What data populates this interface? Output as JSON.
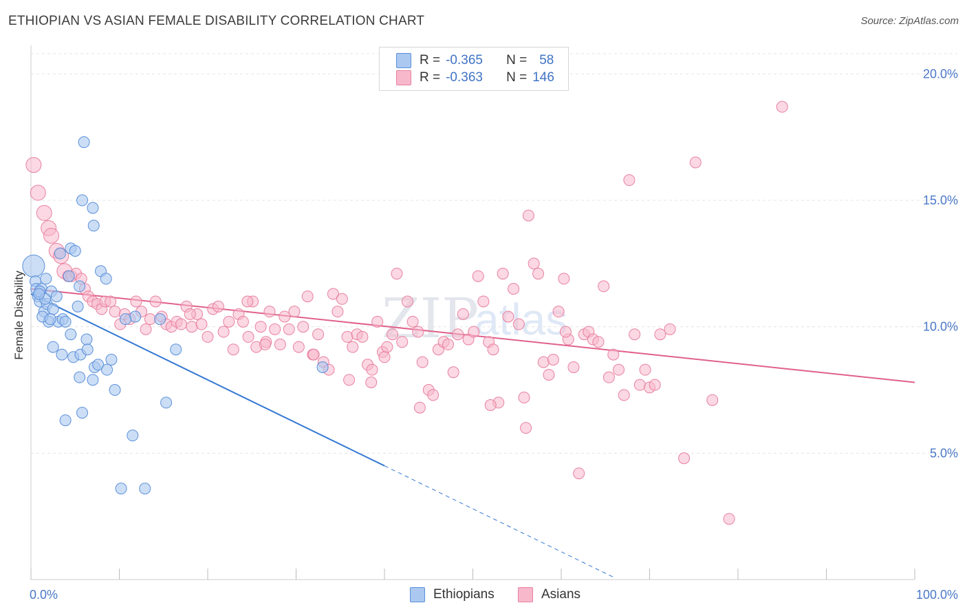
{
  "title": "ETHIOPIAN VS ASIAN FEMALE DISABILITY CORRELATION CHART",
  "source": "Source: ZipAtlas.com",
  "watermark": {
    "zip": "ZIP",
    "atlas": "atlas"
  },
  "legend": {
    "r_label": "R =",
    "n_label": "N =",
    "ethiopians": {
      "r": "-0.365",
      "n": "58"
    },
    "asians": {
      "r": "-0.363",
      "n": "146"
    }
  },
  "bottom_legend": {
    "ethiopians": "Ethiopians",
    "asians": "Asians"
  },
  "colors": {
    "ethiopians_fill": "#aac8f0",
    "ethiopians_stroke": "#5b8fd9",
    "ethiopians_line": "#3478d4",
    "asians_fill": "#f7b8cc",
    "asians_stroke": "#e8809f",
    "asians_line": "#e0608a",
    "tick_text": "#4a78c8",
    "grid": "#e4e4e4"
  },
  "chart_data": {
    "type": "scatter",
    "title": "ETHIOPIAN VS ASIAN FEMALE DISABILITY CORRELATION CHART",
    "xlabel": "",
    "ylabel": "Female Disability",
    "xlim": [
      0,
      100
    ],
    "ylim": [
      0,
      20.8
    ],
    "x_tick_labels": [
      "0.0%",
      "100.0%"
    ],
    "y_ticks": [
      5,
      10,
      15,
      20
    ],
    "y_tick_labels": [
      "5.0%",
      "10.0%",
      "15.0%",
      "20.0%"
    ],
    "grid": "horizontal dashed",
    "legend_position": "top-center",
    "series": [
      {
        "name": "Ethiopians",
        "r": -0.365,
        "n": 58,
        "trend": {
          "x0": 0,
          "y0": 11.3,
          "x1": 40,
          "y1": 4.5,
          "dashed_to_x": 66
        },
        "points": [
          [
            0.3,
            12.4
          ],
          [
            0.5,
            11.8
          ],
          [
            0.6,
            11.5
          ],
          [
            0.8,
            11.2
          ],
          [
            1.0,
            11.0
          ],
          [
            1.2,
            11.5
          ],
          [
            1.5,
            10.6
          ],
          [
            1.7,
            11.9
          ],
          [
            1.8,
            10.9
          ],
          [
            2.0,
            10.2
          ],
          [
            1.3,
            10.4
          ],
          [
            2.3,
            11.4
          ],
          [
            2.5,
            10.7
          ],
          [
            2.9,
            11.2
          ],
          [
            3.1,
            10.2
          ],
          [
            3.6,
            10.3
          ],
          [
            3.9,
            10.2
          ],
          [
            3.3,
            12.9
          ],
          [
            4.3,
            12.0
          ],
          [
            4.5,
            13.1
          ],
          [
            5.0,
            13.0
          ],
          [
            5.3,
            10.8
          ],
          [
            5.5,
            11.6
          ],
          [
            6.0,
            17.3
          ],
          [
            5.8,
            15.0
          ],
          [
            7.0,
            14.7
          ],
          [
            7.1,
            14.0
          ],
          [
            7.9,
            12.2
          ],
          [
            8.5,
            11.9
          ],
          [
            2.5,
            9.2
          ],
          [
            3.5,
            8.9
          ],
          [
            4.5,
            9.7
          ],
          [
            4.8,
            8.8
          ],
          [
            5.6,
            8.9
          ],
          [
            6.3,
            9.5
          ],
          [
            6.4,
            9.1
          ],
          [
            7.2,
            8.4
          ],
          [
            7.6,
            8.5
          ],
          [
            8.6,
            8.3
          ],
          [
            9.1,
            8.7
          ],
          [
            5.5,
            8.0
          ],
          [
            7.0,
            7.9
          ],
          [
            9.5,
            7.5
          ],
          [
            11.8,
            10.4
          ],
          [
            10.7,
            10.3
          ],
          [
            14.6,
            10.3
          ],
          [
            16.4,
            9.1
          ],
          [
            15.3,
            7.0
          ],
          [
            5.8,
            6.6
          ],
          [
            3.9,
            6.3
          ],
          [
            11.5,
            5.7
          ],
          [
            10.2,
            3.6
          ],
          [
            12.9,
            3.6
          ],
          [
            33.0,
            8.4
          ],
          [
            1.0,
            11.4
          ],
          [
            2.2,
            10.3
          ],
          [
            1.6,
            11.1
          ],
          [
            0.9,
            11.3
          ]
        ]
      },
      {
        "name": "Asians",
        "r": -0.363,
        "n": 146,
        "trend": {
          "x0": 0,
          "y0": 11.5,
          "x1": 100,
          "y1": 7.8
        },
        "points": [
          [
            0.3,
            16.4
          ],
          [
            0.8,
            15.3
          ],
          [
            1.5,
            14.5
          ],
          [
            2.0,
            13.9
          ],
          [
            2.3,
            13.6
          ],
          [
            2.9,
            13.0
          ],
          [
            3.4,
            12.8
          ],
          [
            3.8,
            12.2
          ],
          [
            4.2,
            12.0
          ],
          [
            4.6,
            12.0
          ],
          [
            5.1,
            12.1
          ],
          [
            5.7,
            11.9
          ],
          [
            6.1,
            11.5
          ],
          [
            6.5,
            11.2
          ],
          [
            7.0,
            11.0
          ],
          [
            7.5,
            10.9
          ],
          [
            8.0,
            10.7
          ],
          [
            8.4,
            11.0
          ],
          [
            9.0,
            11.0
          ],
          [
            9.5,
            10.6
          ],
          [
            10.1,
            10.1
          ],
          [
            10.6,
            10.5
          ],
          [
            11.2,
            10.3
          ],
          [
            11.9,
            11.0
          ],
          [
            12.5,
            10.6
          ],
          [
            13.0,
            9.9
          ],
          [
            13.5,
            10.3
          ],
          [
            14.1,
            11.0
          ],
          [
            14.8,
            10.4
          ],
          [
            15.3,
            10.1
          ],
          [
            15.9,
            10.0
          ],
          [
            16.5,
            10.2
          ],
          [
            17.0,
            10.1
          ],
          [
            17.6,
            10.8
          ],
          [
            18.2,
            10.0
          ],
          [
            18.8,
            10.5
          ],
          [
            19.3,
            10.1
          ],
          [
            20.0,
            9.6
          ],
          [
            20.6,
            10.7
          ],
          [
            21.2,
            10.8
          ],
          [
            21.8,
            9.8
          ],
          [
            22.4,
            10.2
          ],
          [
            22.9,
            9.1
          ],
          [
            23.5,
            10.5
          ],
          [
            24.0,
            10.2
          ],
          [
            24.6,
            9.6
          ],
          [
            25.1,
            11.0
          ],
          [
            25.5,
            9.2
          ],
          [
            26.0,
            10.0
          ],
          [
            26.6,
            9.4
          ],
          [
            27.0,
            10.6
          ],
          [
            27.6,
            9.9
          ],
          [
            28.2,
            9.3
          ],
          [
            28.7,
            10.4
          ],
          [
            29.2,
            9.9
          ],
          [
            29.8,
            10.6
          ],
          [
            30.3,
            9.2
          ],
          [
            30.8,
            10.0
          ],
          [
            31.3,
            11.2
          ],
          [
            31.9,
            8.9
          ],
          [
            32.5,
            9.7
          ],
          [
            33.1,
            8.6
          ],
          [
            33.7,
            8.3
          ],
          [
            34.2,
            11.3
          ],
          [
            34.7,
            10.6
          ],
          [
            35.2,
            11.1
          ],
          [
            35.8,
            9.6
          ],
          [
            36.4,
            9.2
          ],
          [
            36.9,
            9.7
          ],
          [
            37.5,
            9.6
          ],
          [
            38.1,
            8.5
          ],
          [
            38.6,
            8.3
          ],
          [
            39.2,
            10.2
          ],
          [
            39.8,
            9.0
          ],
          [
            40.3,
            9.2
          ],
          [
            40.9,
            9.7
          ],
          [
            41.4,
            12.1
          ],
          [
            42.0,
            9.4
          ],
          [
            42.6,
            11.0
          ],
          [
            43.2,
            10.2
          ],
          [
            43.8,
            9.8
          ],
          [
            44.3,
            8.6
          ],
          [
            45.0,
            7.5
          ],
          [
            45.5,
            7.3
          ],
          [
            46.1,
            9.1
          ],
          [
            46.7,
            9.4
          ],
          [
            47.2,
            9.3
          ],
          [
            47.8,
            8.2
          ],
          [
            48.3,
            9.7
          ],
          [
            48.9,
            10.5
          ],
          [
            49.5,
            9.5
          ],
          [
            50.1,
            9.8
          ],
          [
            50.6,
            12.0
          ],
          [
            51.2,
            11.0
          ],
          [
            51.8,
            9.4
          ],
          [
            52.3,
            9.1
          ],
          [
            52.9,
            7.0
          ],
          [
            53.4,
            12.1
          ],
          [
            54.0,
            10.4
          ],
          [
            54.6,
            11.5
          ],
          [
            55.2,
            10.1
          ],
          [
            55.8,
            7.2
          ],
          [
            56.3,
            14.4
          ],
          [
            56.9,
            12.5
          ],
          [
            57.4,
            12.1
          ],
          [
            58.0,
            8.6
          ],
          [
            58.6,
            8.1
          ],
          [
            59.1,
            8.7
          ],
          [
            59.7,
            10.6
          ],
          [
            60.3,
            11.9
          ],
          [
            60.8,
            9.5
          ],
          [
            61.4,
            8.4
          ],
          [
            62.0,
            4.2
          ],
          [
            62.6,
            9.7
          ],
          [
            63.1,
            9.8
          ],
          [
            63.6,
            9.5
          ],
          [
            64.2,
            9.4
          ],
          [
            64.8,
            11.6
          ],
          [
            65.4,
            8.0
          ],
          [
            65.9,
            8.9
          ],
          [
            66.5,
            8.3
          ],
          [
            67.1,
            7.3
          ],
          [
            67.7,
            15.8
          ],
          [
            68.3,
            9.7
          ],
          [
            68.9,
            7.7
          ],
          [
            69.5,
            8.3
          ],
          [
            70.0,
            7.6
          ],
          [
            70.6,
            7.7
          ],
          [
            71.2,
            9.7
          ],
          [
            72.3,
            9.9
          ],
          [
            73.9,
            4.8
          ],
          [
            75.2,
            16.5
          ],
          [
            77.1,
            7.1
          ],
          [
            85.0,
            18.7
          ],
          [
            79.0,
            2.4
          ],
          [
            40.0,
            8.8
          ],
          [
            32.0,
            8.9
          ],
          [
            18.0,
            10.5
          ],
          [
            36.0,
            7.9
          ],
          [
            44.0,
            6.8
          ],
          [
            52.0,
            6.9
          ],
          [
            56.0,
            6.0
          ],
          [
            60.5,
            9.8
          ],
          [
            24.5,
            11.0
          ],
          [
            26.5,
            9.3
          ],
          [
            38.5,
            7.8
          ]
        ]
      }
    ]
  }
}
